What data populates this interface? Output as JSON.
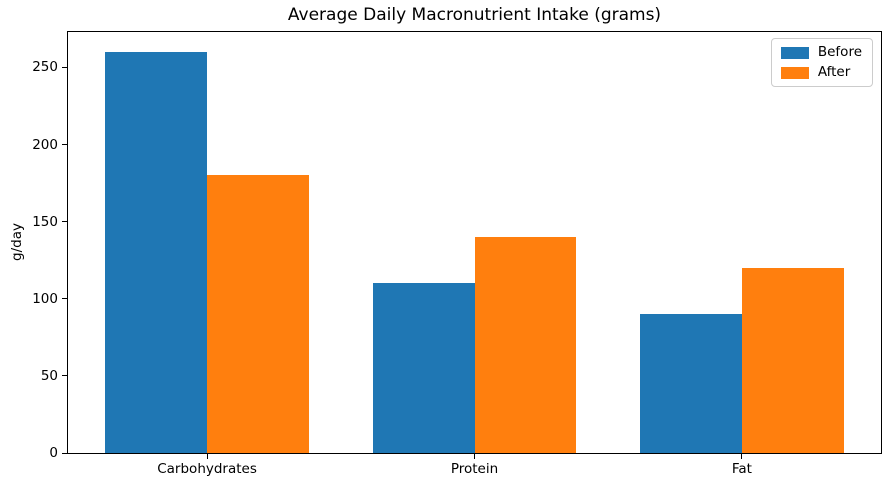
{
  "chart_data": {
    "type": "bar",
    "title": "Average Daily Macronutrient Intake (grams)",
    "xlabel": "",
    "ylabel": "g/day",
    "categories": [
      "Carbohydrates",
      "Protein",
      "Fat"
    ],
    "series": [
      {
        "name": "Before",
        "color": "#1f77b4",
        "values": [
          260,
          110,
          90
        ]
      },
      {
        "name": "After",
        "color": "#ff7f0e",
        "values": [
          180,
          140,
          120
        ]
      }
    ],
    "ylim": [
      0,
      273
    ],
    "yticks": [
      0,
      50,
      100,
      150,
      200,
      250
    ],
    "grid": false,
    "legend_position": "upper right",
    "bar_width": 0.38,
    "axis_color": "#000000",
    "text_color": "#000000",
    "legend_border_color": "#cccccc"
  }
}
